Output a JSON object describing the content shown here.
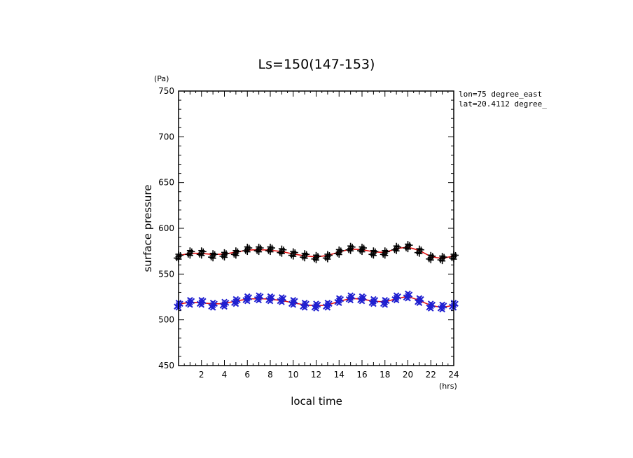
{
  "chart_data": {
    "type": "scatter",
    "title": "Ls=150(147-153)",
    "xlabel": "local time",
    "ylabel": "surface pressure",
    "x_unit": "(hrs)",
    "y_unit": "(Pa)",
    "xlim": [
      0,
      24
    ],
    "ylim": [
      450,
      750
    ],
    "x_ticks": [
      2,
      4,
      6,
      8,
      10,
      12,
      14,
      16,
      18,
      20,
      22,
      24
    ],
    "x_tick_labels": [
      "2",
      "4",
      "6",
      "8",
      "10",
      "12",
      "14",
      "16",
      "18",
      "20",
      "22",
      "24"
    ],
    "y_ticks": [
      450,
      500,
      550,
      600,
      650,
      700,
      750
    ],
    "y_tick_labels": [
      "450",
      "500",
      "550",
      "600",
      "650",
      "700",
      "750"
    ],
    "grid": false,
    "annotations": [
      "lon=75 degree_east",
      "lat=20.4112 degree_"
    ],
    "colors": {
      "upper_series": "#000000",
      "lower_series": "#1f1fd0",
      "fit_line": "#e01010"
    },
    "series": [
      {
        "marker": "plus",
        "x": [
          0,
          1,
          2,
          3,
          4,
          5,
          6,
          7,
          8,
          9,
          10,
          11,
          12,
          13,
          14,
          15,
          16,
          17,
          18,
          19,
          20,
          21,
          22,
          23,
          24
        ],
        "values": [
          569,
          573,
          573,
          570,
          571,
          573,
          577,
          577,
          577,
          575,
          572,
          570,
          568,
          569,
          574,
          578,
          577,
          573,
          573,
          578,
          580,
          575,
          568,
          567,
          569
        ]
      },
      {
        "marker": "x",
        "x": [
          0,
          1,
          2,
          3,
          4,
          5,
          6,
          7,
          8,
          9,
          10,
          11,
          12,
          13,
          14,
          15,
          16,
          17,
          18,
          19,
          20,
          21,
          22,
          23,
          24
        ],
        "values": [
          516,
          519,
          519,
          516,
          517,
          520,
          523,
          524,
          523,
          522,
          519,
          516,
          515,
          516,
          521,
          524,
          523,
          520,
          519,
          524,
          526,
          521,
          515,
          514,
          516
        ]
      }
    ],
    "fit_lines": [
      {
        "x": [
          0,
          1,
          2,
          3,
          4,
          5,
          6,
          7,
          8,
          9,
          10,
          11,
          12,
          13,
          14,
          15,
          16,
          17,
          18,
          19,
          20,
          21,
          22,
          23,
          24
        ],
        "values": [
          570,
          572.5,
          572.5,
          571.5,
          572,
          574,
          576,
          576.5,
          576,
          574.5,
          572,
          570,
          569,
          570.5,
          574,
          577,
          576.5,
          574.5,
          574,
          577.5,
          579,
          575.5,
          569.5,
          567.5,
          570
        ]
      },
      {
        "x": [
          0,
          1,
          2,
          3,
          4,
          5,
          6,
          7,
          8,
          9,
          10,
          11,
          12,
          13,
          14,
          15,
          16,
          17,
          18,
          19,
          20,
          21,
          22,
          23,
          24
        ],
        "values": [
          517,
          519,
          518.5,
          517.5,
          518,
          520.5,
          522.5,
          523,
          522.5,
          521,
          518.5,
          516.5,
          515.5,
          516.5,
          520,
          523,
          522.5,
          520.5,
          520,
          523,
          525,
          521,
          516,
          514,
          516
        ]
      }
    ]
  }
}
